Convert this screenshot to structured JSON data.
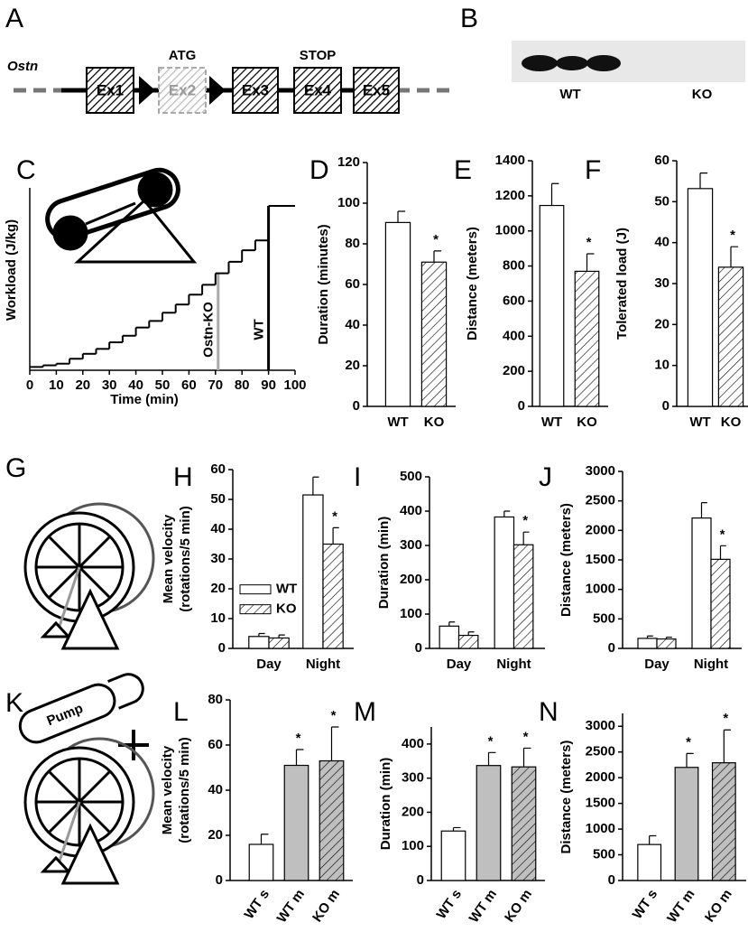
{
  "gene_diagram": {
    "label": "A",
    "gene": "Ostn",
    "exons": [
      "Ex1",
      "Ex2",
      "Ex3",
      "Ex4",
      "Ex5"
    ],
    "start": "ATG",
    "stop": "STOP"
  },
  "blot": {
    "label": "B",
    "lanes": [
      "WT",
      "KO"
    ]
  },
  "wheel_panels": {
    "labels": [
      "G",
      "K"
    ],
    "pump": "Pump"
  },
  "chart_data": [
    {
      "type": "step",
      "label": "C",
      "xlabel": "Time (min)",
      "ylabel": "Workload (J/kg)",
      "x": [
        0,
        5,
        10,
        15,
        20,
        25,
        30,
        35,
        40,
        45,
        50,
        55,
        60,
        65,
        70,
        75,
        80,
        85,
        90,
        100
      ],
      "values": [
        2,
        3,
        4,
        7,
        10,
        13,
        17,
        21,
        26,
        30,
        35,
        40,
        46,
        52,
        59,
        66,
        73,
        79,
        100,
        100
      ],
      "xlim": [
        0,
        100
      ],
      "xticks": [
        0,
        10,
        20,
        30,
        40,
        50,
        60,
        70,
        80,
        90,
        100
      ],
      "ylim": [
        0,
        100
      ],
      "color": "#000000",
      "markers": [
        {
          "x": 71,
          "label": "Ostn-KO",
          "color": "#aaaaaa"
        },
        {
          "x": 90,
          "label": "WT",
          "color": "#000000"
        }
      ]
    },
    {
      "type": "bar",
      "label": "D",
      "ylabel": "Duration (minutes)",
      "categories": [
        "WT",
        "KO"
      ],
      "values": [
        90.5,
        71
      ],
      "errors": [
        5.5,
        5.5
      ],
      "colors": [
        "#ffffff",
        "#ffffff"
      ],
      "hatch": [
        false,
        true
      ],
      "stars": [
        null,
        "*"
      ],
      "ylim": [
        0,
        120
      ],
      "yticks": [
        0,
        20,
        40,
        60,
        80,
        100,
        120
      ]
    },
    {
      "type": "bar",
      "label": "E",
      "ylabel": "Distance (meters)",
      "categories": [
        "WT",
        "KO"
      ],
      "values": [
        1145,
        770
      ],
      "errors": [
        125,
        100
      ],
      "colors": [
        "#ffffff",
        "#ffffff"
      ],
      "hatch": [
        false,
        true
      ],
      "stars": [
        null,
        "*"
      ],
      "ylim": [
        0,
        1400
      ],
      "yticks": [
        0,
        200,
        400,
        600,
        800,
        1000,
        1200,
        1400
      ]
    },
    {
      "type": "bar",
      "label": "F",
      "ylabel": "Tolerated load (J)",
      "categories": [
        "WT",
        "KO"
      ],
      "values": [
        53.2,
        34
      ],
      "errors": [
        3.8,
        5
      ],
      "colors": [
        "#ffffff",
        "#ffffff"
      ],
      "hatch": [
        false,
        true
      ],
      "stars": [
        null,
        "*"
      ],
      "ylim": [
        0,
        60
      ],
      "yticks": [
        0,
        10,
        20,
        30,
        40,
        50,
        60
      ]
    },
    {
      "type": "grouped",
      "label": "H",
      "ylabel": [
        "Mean velocity",
        "(rotations/5 min)"
      ],
      "categories": [
        "Day",
        "Night"
      ],
      "legend": "left",
      "series": [
        {
          "name": "WT",
          "color": "#ffffff",
          "hatch": false,
          "values": [
            4,
            51.5
          ],
          "errors": [
            1,
            6
          ],
          "stars": [
            null,
            null
          ]
        },
        {
          "name": "KO",
          "color": "#ffffff",
          "hatch": true,
          "values": [
            3.5,
            35
          ],
          "errors": [
            1,
            5.5
          ],
          "stars": [
            null,
            "*"
          ]
        }
      ],
      "ylim": [
        0,
        60
      ],
      "yticks": [
        0,
        10,
        20,
        30,
        40,
        50,
        60
      ]
    },
    {
      "type": "grouped",
      "label": "I",
      "ylabel": "Duration (min)",
      "categories": [
        "Day",
        "Night"
      ],
      "series": [
        {
          "name": "WT",
          "color": "#ffffff",
          "hatch": false,
          "values": [
            65,
            383
          ],
          "errors": [
            12,
            17
          ],
          "stars": [
            null,
            null
          ]
        },
        {
          "name": "KO",
          "color": "#ffffff",
          "hatch": true,
          "values": [
            38,
            302
          ],
          "errors": [
            10,
            37
          ],
          "stars": [
            null,
            "*"
          ]
        }
      ],
      "ylim": [
        0,
        500
      ],
      "yticks": [
        0,
        100,
        200,
        300,
        400,
        500
      ]
    },
    {
      "type": "grouped",
      "label": "J",
      "ylabel": "Distance (meters)",
      "categories": [
        "Day",
        "Night"
      ],
      "series": [
        {
          "name": "WT",
          "color": "#ffffff",
          "hatch": false,
          "values": [
            170,
            2210
          ],
          "errors": [
            40,
            260
          ],
          "stars": [
            null,
            null
          ]
        },
        {
          "name": "KO",
          "color": "#ffffff",
          "hatch": true,
          "values": [
            160,
            1510
          ],
          "errors": [
            30,
            230
          ],
          "stars": [
            null,
            "*"
          ]
        }
      ],
      "ylim": [
        0,
        3000
      ],
      "yticks": [
        0,
        500,
        1000,
        1500,
        2000,
        2500,
        3000
      ]
    },
    {
      "type": "bar",
      "label": "L",
      "ylabel": [
        "Mean velocity",
        "(rotations/5 min)"
      ],
      "categories": [
        "WT s",
        "WT m",
        "KO m"
      ],
      "values": [
        16,
        51,
        53
      ],
      "errors": [
        4.5,
        7,
        15
      ],
      "colors": [
        "#ffffff",
        "#bfbfbf",
        "#bfbfbf"
      ],
      "hatch": [
        false,
        false,
        true
      ],
      "stars": [
        null,
        "*",
        "*"
      ],
      "ylim": [
        0,
        80
      ],
      "yticks": [
        0,
        20,
        40,
        60,
        80
      ]
    },
    {
      "type": "bar",
      "label": "M",
      "ylabel": "Duration (min)",
      "categories": [
        "WT s",
        "WT m",
        "KO m"
      ],
      "values": [
        145,
        337,
        333
      ],
      "errors": [
        10,
        38,
        55
      ],
      "colors": [
        "#ffffff",
        "#bfbfbf",
        "#bfbfbf"
      ],
      "hatch": [
        false,
        false,
        true
      ],
      "stars": [
        null,
        "*",
        "*"
      ],
      "ylim": [
        0,
        450
      ],
      "yticks": [
        0,
        100,
        200,
        300,
        400
      ]
    },
    {
      "type": "bar",
      "label": "N",
      "ylabel": "Distance (meters)",
      "categories": [
        "WT s",
        "WT m",
        "KO m"
      ],
      "values": [
        700,
        2200,
        2290
      ],
      "errors": [
        170,
        270,
        640
      ],
      "colors": [
        "#ffffff",
        "#bfbfbf",
        "#bfbfbf"
      ],
      "hatch": [
        false,
        false,
        true
      ],
      "stars": [
        null,
        "*",
        "*"
      ],
      "ylim": [
        0,
        3250
      ],
      "yticks": [
        0,
        500,
        1000,
        1500,
        2000,
        2500,
        3000
      ]
    }
  ]
}
